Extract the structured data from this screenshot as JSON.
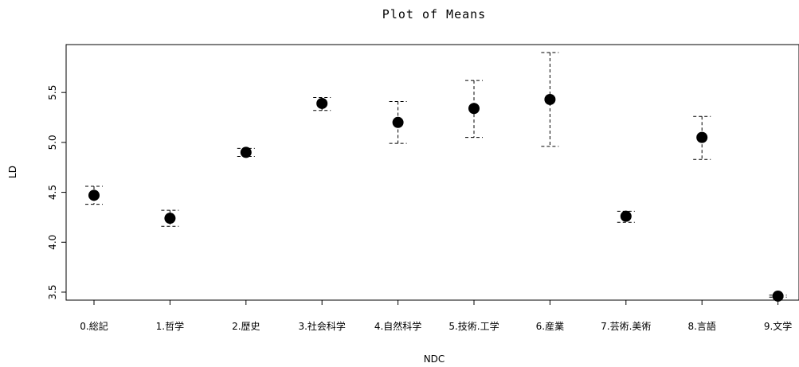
{
  "chart_data": {
    "type": "scatter",
    "title": "Plot of Means",
    "xlabel": "NDC",
    "ylabel": "LD",
    "categories": [
      "0.総記",
      "1.哲学",
      "2.歴史",
      "3.社会科学",
      "4.自然科学",
      "5.技術.工学",
      "6.産業",
      "7.芸術.美術",
      "8.言語",
      "9.文学"
    ],
    "series": [
      {
        "values": [
          4.47,
          4.24,
          4.9,
          5.39,
          5.2,
          5.34,
          5.43,
          4.26,
          5.05,
          3.46
        ],
        "upper": [
          4.56,
          4.32,
          4.94,
          5.45,
          5.41,
          5.62,
          5.9,
          4.31,
          5.26,
          3.47
        ],
        "lower": [
          4.38,
          4.16,
          4.86,
          5.32,
          4.99,
          5.05,
          4.96,
          4.2,
          4.83,
          3.45
        ]
      }
    ],
    "yticks": [
      "3.5",
      "4.0",
      "4.5",
      "5.0",
      "5.5"
    ],
    "ylim": [
      3.42,
      5.98
    ],
    "grid": false,
    "error_bars": "dashed"
  }
}
